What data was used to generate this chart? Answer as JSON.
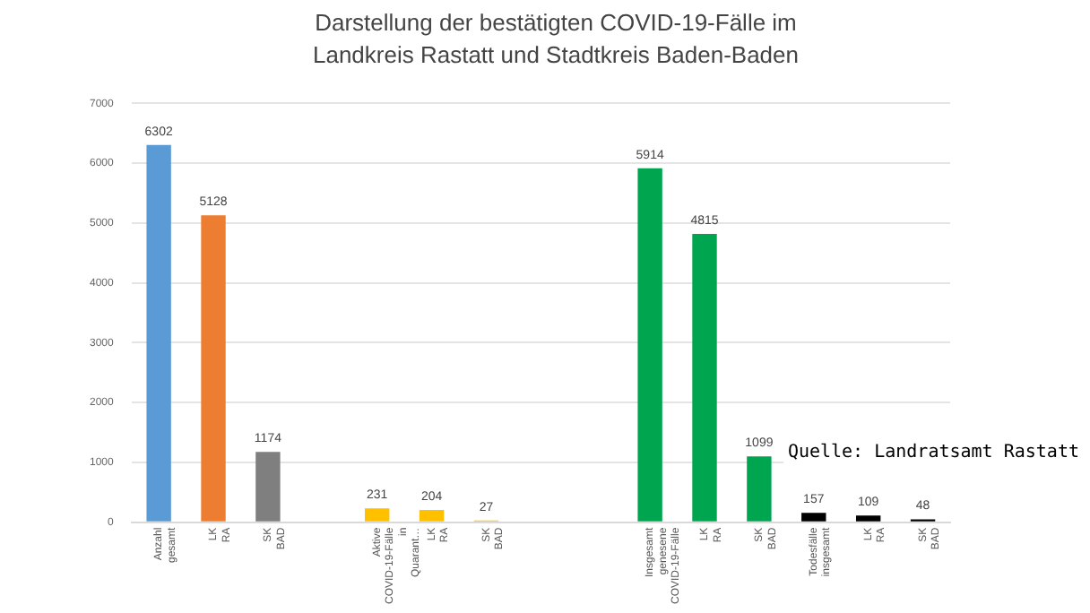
{
  "chart_data": {
    "type": "bar",
    "title": "Darstellung der bestätigten COVID-19-Fälle im Landkreis Rastatt und Stadtkreis Baden-Baden",
    "categories": [
      "Anzahl gesamt",
      "LK RA",
      "SK BAD",
      null,
      "Aktive COVID-19-Fälle in Quarant…",
      "LK RA",
      "SK BAD",
      null,
      null,
      "Insgesamt genesene COVID-19-Fälle",
      "LK RA",
      "SK BAD",
      "Todesfälle insgesamt",
      "LK RA",
      "SK BAD"
    ],
    "values": [
      6302,
      5128,
      1174,
      null,
      231,
      204,
      27,
      null,
      null,
      5914,
      4815,
      1099,
      157,
      109,
      48
    ],
    "colors": [
      "#5b9bd5",
      "#ed7d31",
      "#7f7f7f",
      "#ffffff",
      "#ffc000",
      "#ffc000",
      "#ffc000",
      "#ffffff",
      "#ffffff",
      "#00a64f",
      "#00a64f",
      "#00a64f",
      "#000000",
      "#000000",
      "#000000"
    ],
    "ylim": [
      0,
      7000
    ],
    "yticks": [
      0,
      1000,
      2000,
      3000,
      4000,
      5000,
      6000,
      7000
    ],
    "grid": "y",
    "data_labels": true,
    "annotations": [
      "Quelle: Landratsamt Rastatt"
    ]
  }
}
